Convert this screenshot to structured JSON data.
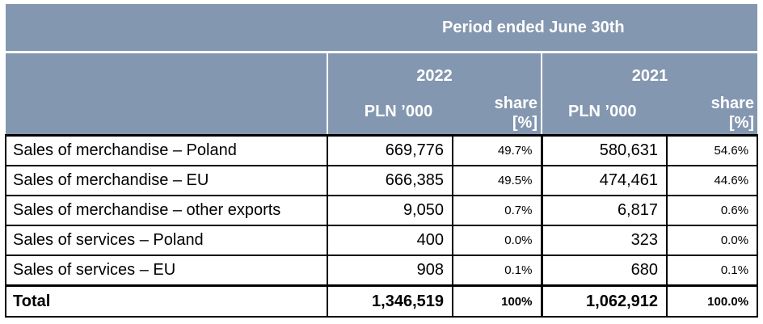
{
  "header": {
    "period": "Period ended June 30th",
    "years": [
      "2022",
      "2021"
    ],
    "unit_label": "PLN ’000",
    "share_line1": "share",
    "share_line2": "[%]"
  },
  "rows": [
    {
      "label": "Sales of merchandise – Poland",
      "v2022": "669,776",
      "s2022": "49.7%",
      "v2021": "580,631",
      "s2021": "54.6%"
    },
    {
      "label": "Sales of merchandise – EU",
      "v2022": "666,385",
      "s2022": "49.5%",
      "v2021": "474,461",
      "s2021": "44.6%"
    },
    {
      "label": "Sales of merchandise – other exports",
      "v2022": "9,050",
      "s2022": "0.7%",
      "v2021": "6,817",
      "s2021": "0.6%"
    },
    {
      "label": "Sales of services – Poland",
      "v2022": "400",
      "s2022": "0.0%",
      "v2021": "323",
      "s2021": "0.0%"
    },
    {
      "label": "Sales of services – EU",
      "v2022": "908",
      "s2022": "0.1%",
      "v2021": "680",
      "s2021": "0.1%"
    }
  ],
  "total": {
    "label": "Total",
    "v2022": "1,346,519",
    "s2022": "100%",
    "v2021": "1,062,912",
    "s2021": "100.0%"
  },
  "colors": {
    "header_bg": "#8497b0",
    "header_text": "#ffffff",
    "border": "#000000"
  }
}
